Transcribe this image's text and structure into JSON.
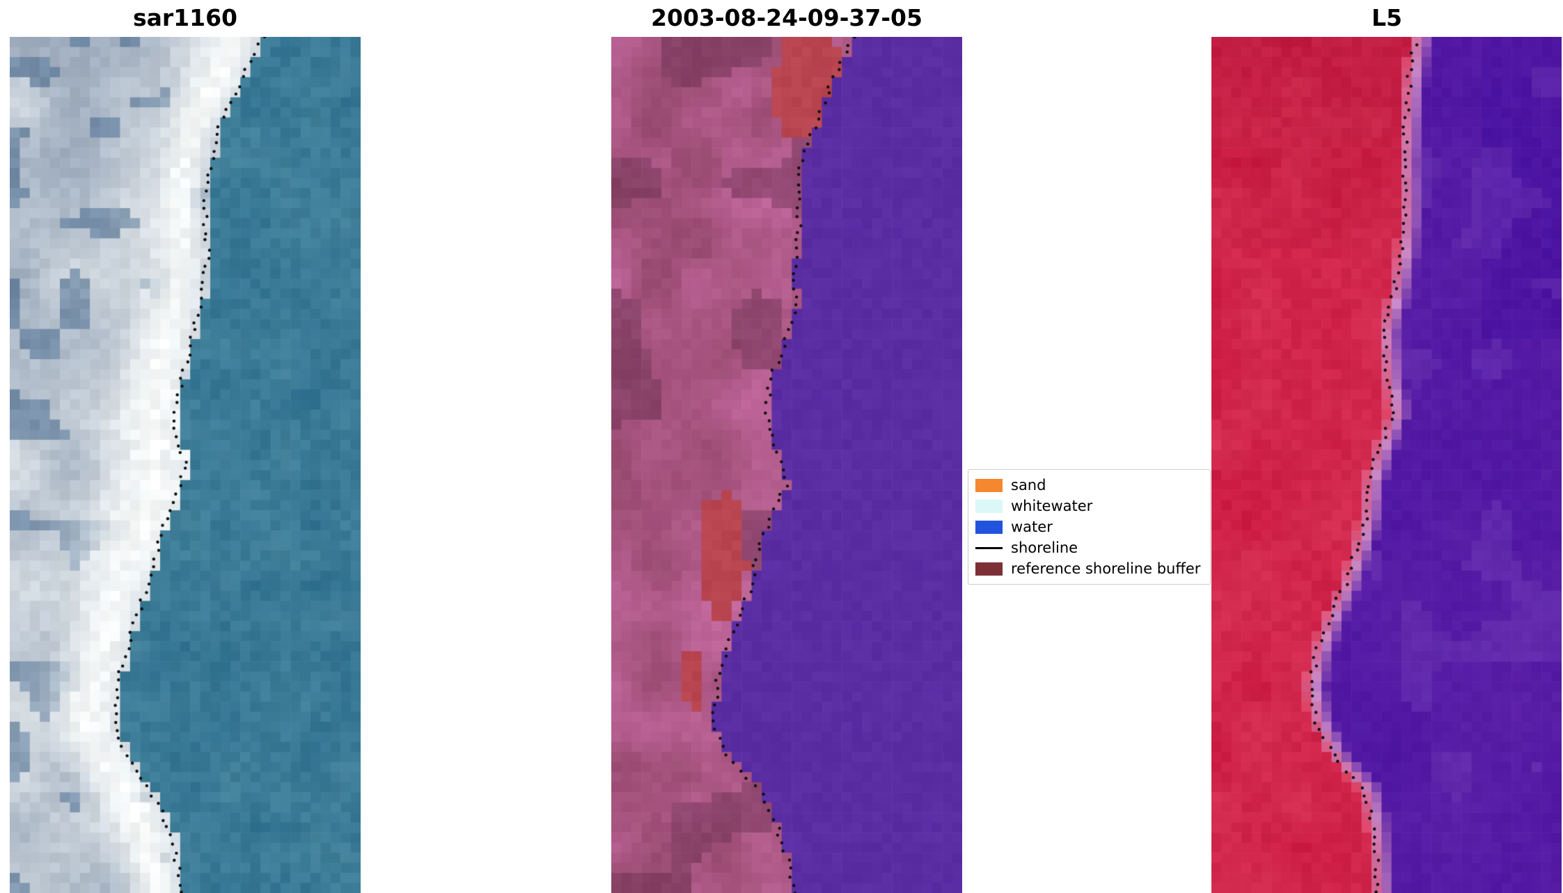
{
  "chart_data": [
    {
      "type": "heatmap",
      "panel": "left",
      "title": "sar1160",
      "style": "sar",
      "colors": {
        "water": "#2e7090",
        "water_light": "#4f8ba0",
        "shore_gray": "#7e90a8",
        "bright": "#e9eef0",
        "surf_white": "#fcfefc",
        "left_blue": "#47698d"
      },
      "shoreline_color": "#0d0d0d",
      "shoreline_norm": [
        [
          0.72,
          0.0
        ],
        [
          0.66,
          0.05
        ],
        [
          0.6,
          0.1
        ],
        [
          0.57,
          0.15
        ],
        [
          0.555,
          0.2
        ],
        [
          0.565,
          0.25
        ],
        [
          0.55,
          0.3
        ],
        [
          0.52,
          0.35
        ],
        [
          0.49,
          0.4
        ],
        [
          0.465,
          0.45
        ],
        [
          0.5,
          0.5
        ],
        [
          0.475,
          0.54
        ],
        [
          0.43,
          0.58
        ],
        [
          0.41,
          0.62
        ],
        [
          0.375,
          0.66
        ],
        [
          0.345,
          0.7
        ],
        [
          0.315,
          0.74
        ],
        [
          0.3,
          0.78
        ],
        [
          0.305,
          0.82
        ],
        [
          0.36,
          0.86
        ],
        [
          0.425,
          0.9
        ],
        [
          0.465,
          0.94
        ],
        [
          0.49,
          1.0
        ]
      ]
    },
    {
      "type": "heatmap",
      "panel": "middle",
      "title": "2003-08-24-09-37-05",
      "style": "classification",
      "colors": {
        "water": "#5b2da3",
        "land": "#9a4c72",
        "land_light": "#c76aa2",
        "dark": "#703355",
        "blob": "#b8454f"
      },
      "blobs": [
        {
          "x": 0.55,
          "y": 0.05,
          "rx": 0.1,
          "ry": 0.09
        },
        {
          "x": 0.315,
          "y": 0.6,
          "rx": 0.078,
          "ry": 0.072
        },
        {
          "x": 0.235,
          "y": 0.755,
          "rx": 0.03,
          "ry": 0.042
        }
      ],
      "shoreline_color": "#0d0d0d",
      "shoreline_norm": [
        [
          0.69,
          0.0
        ],
        [
          0.63,
          0.05
        ],
        [
          0.585,
          0.1
        ],
        [
          0.545,
          0.14
        ],
        [
          0.53,
          0.18
        ],
        [
          0.535,
          0.22
        ],
        [
          0.52,
          0.27
        ],
        [
          0.53,
          0.31
        ],
        [
          0.5,
          0.35
        ],
        [
          0.455,
          0.4
        ],
        [
          0.44,
          0.44
        ],
        [
          0.47,
          0.48
        ],
        [
          0.5,
          0.52
        ],
        [
          0.455,
          0.56
        ],
        [
          0.42,
          0.6
        ],
        [
          0.4,
          0.64
        ],
        [
          0.36,
          0.68
        ],
        [
          0.325,
          0.72
        ],
        [
          0.3,
          0.76
        ],
        [
          0.29,
          0.8
        ],
        [
          0.33,
          0.84
        ],
        [
          0.42,
          0.88
        ],
        [
          0.47,
          0.92
        ],
        [
          0.5,
          0.96
        ],
        [
          0.525,
          1.0
        ]
      ]
    },
    {
      "type": "heatmap",
      "panel": "right",
      "title": "L5",
      "style": "l5",
      "colors": {
        "red": "#c9153e",
        "red_light": "#e04465",
        "red_dark": "#a80e33",
        "pink": "#c887c4",
        "purple": "#5a1fa6",
        "purple_dark": "#460fa0",
        "purple_light": "#6e38b4"
      },
      "shoreline_color": "#0d0d0d",
      "shoreline_norm": [
        [
          0.585,
          0.0
        ],
        [
          0.565,
          0.05
        ],
        [
          0.555,
          0.1
        ],
        [
          0.55,
          0.15
        ],
        [
          0.555,
          0.2
        ],
        [
          0.545,
          0.25
        ],
        [
          0.52,
          0.3
        ],
        [
          0.49,
          0.35
        ],
        [
          0.505,
          0.4
        ],
        [
          0.52,
          0.44
        ],
        [
          0.48,
          0.48
        ],
        [
          0.45,
          0.52
        ],
        [
          0.44,
          0.56
        ],
        [
          0.415,
          0.6
        ],
        [
          0.38,
          0.64
        ],
        [
          0.335,
          0.68
        ],
        [
          0.3,
          0.72
        ],
        [
          0.28,
          0.76
        ],
        [
          0.3,
          0.8
        ],
        [
          0.35,
          0.84
        ],
        [
          0.44,
          0.88
        ],
        [
          0.46,
          0.92
        ],
        [
          0.47,
          0.96
        ],
        [
          0.475,
          1.0
        ]
      ]
    }
  ],
  "legend": {
    "items": [
      {
        "label": "sand",
        "color": "#f5872e",
        "type": "patch"
      },
      {
        "label": "whitewater",
        "color": "#dcf7f7",
        "type": "patch"
      },
      {
        "label": "water",
        "color": "#2253dd",
        "type": "patch"
      },
      {
        "label": "shoreline",
        "color": "#000000",
        "type": "line"
      },
      {
        "label": "reference shoreline buffer",
        "color": "#7c3036",
        "type": "patch"
      }
    ]
  }
}
